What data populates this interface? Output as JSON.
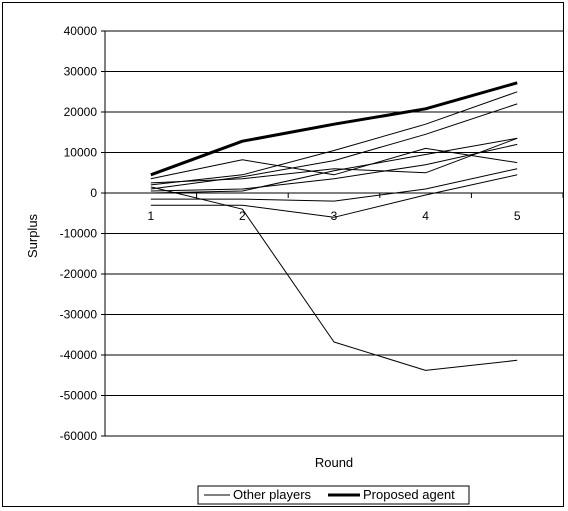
{
  "chart_data": {
    "type": "line",
    "title": "",
    "xlabel": "Round",
    "ylabel": "Surplus",
    "x": [
      1,
      2,
      3,
      4,
      5
    ],
    "ylim": [
      -60000,
      40000
    ],
    "y_ticks": [
      40000,
      30000,
      20000,
      10000,
      0,
      -10000,
      -20000,
      -30000,
      -40000,
      -50000,
      -60000
    ],
    "grid": "horizontal",
    "legend_position": "bottom",
    "legend": [
      "Other players",
      "Proposed agent"
    ],
    "series": [
      {
        "name": "Proposed agent",
        "style": "thick",
        "values": [
          4500,
          12800,
          17000,
          20800,
          27200
        ]
      },
      {
        "name": "Other players",
        "style": "thin",
        "values": [
          2000,
          4500,
          10500,
          17000,
          25000
        ]
      },
      {
        "name": "Other players",
        "style": "thin",
        "values": [
          1000,
          4000,
          8000,
          14500,
          22000
        ]
      },
      {
        "name": "Other players",
        "style": "thin",
        "values": [
          3500,
          8200,
          4500,
          11000,
          7500
        ]
      },
      {
        "name": "Other players",
        "style": "thin",
        "values": [
          0,
          500,
          5500,
          9500,
          13500
        ]
      },
      {
        "name": "Other players",
        "style": "thin",
        "values": [
          500,
          1000,
          3500,
          7000,
          12000
        ]
      },
      {
        "name": "Other players",
        "style": "thin",
        "values": [
          2500,
          3500,
          6000,
          5000,
          13500
        ]
      },
      {
        "name": "Other players",
        "style": "thin",
        "values": [
          -1500,
          -1500,
          -2000,
          1000,
          6000
        ]
      },
      {
        "name": "Other players",
        "style": "thin",
        "values": [
          -3000,
          -3000,
          -6000,
          -500,
          4500
        ]
      },
      {
        "name": "Other players",
        "style": "thin",
        "values": [
          1500,
          -4000,
          -36800,
          -43800,
          -41300
        ]
      }
    ]
  },
  "colors": {
    "line": "#000000",
    "grid": "#000000",
    "background": "#ffffff"
  }
}
